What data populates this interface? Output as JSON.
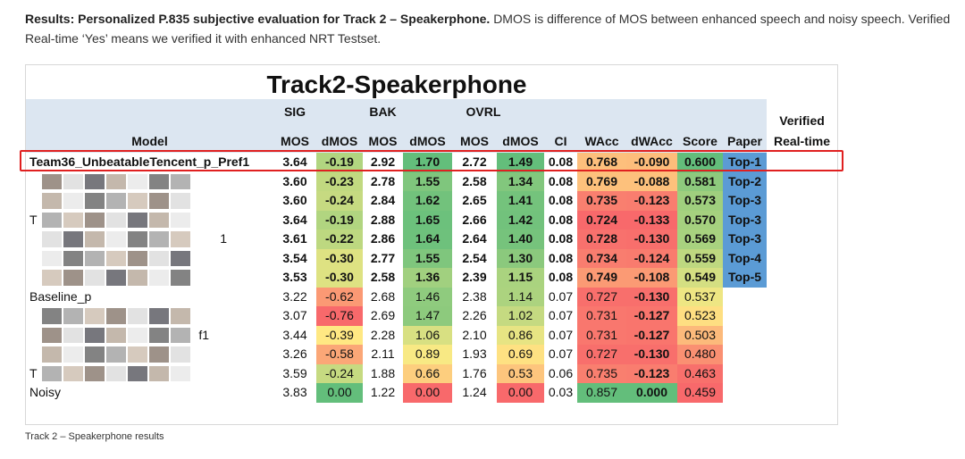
{
  "caption": {
    "bold": "Results: Personalized P.835 subjective evaluation for Track 2 – Speakerphone.",
    "rest": "DMOS is difference of MOS between enhanced speech and noisy speech. Verified Real-time ‘Yes’ means we verified it with enhanced NRT Testset."
  },
  "table": {
    "title": "Track2-Speakerphone",
    "group_headers": [
      "SIG",
      "BAK",
      "OVRL",
      "Verified",
      "Real-time"
    ],
    "columns": [
      "Model",
      "MOS",
      "dMOS",
      "MOS",
      "dMOS",
      "MOS",
      "dMOS",
      "CI",
      "WAcc",
      "dWAcc",
      "Score",
      "Paper"
    ],
    "rows": [
      [
        "Team36_UnbeatableTencent_p_Pref1",
        "3.64",
        "-0.19",
        "2.92",
        "1.70",
        "2.72",
        "1.49",
        "0.08",
        "0.768",
        "-0.090",
        "0.600",
        "Top-1"
      ],
      [
        null,
        "3.60",
        "-0.23",
        "2.78",
        "1.55",
        "2.58",
        "1.34",
        "0.08",
        "0.769",
        "-0.088",
        "0.581",
        "Top-2"
      ],
      [
        null,
        "3.60",
        "-0.24",
        "2.84",
        "1.62",
        "2.65",
        "1.41",
        "0.08",
        "0.735",
        "-0.123",
        "0.573",
        "Top-3"
      ],
      [
        "T",
        "3.64",
        "-0.19",
        "2.88",
        "1.65",
        "2.66",
        "1.42",
        "0.08",
        "0.724",
        "-0.133",
        "0.570",
        "Top-3"
      ],
      [
        "1",
        "3.61",
        "-0.22",
        "2.86",
        "1.64",
        "2.64",
        "1.40",
        "0.08",
        "0.728",
        "-0.130",
        "0.569",
        "Top-3"
      ],
      [
        null,
        "3.54",
        "-0.30",
        "2.77",
        "1.55",
        "2.54",
        "1.30",
        "0.08",
        "0.734",
        "-0.124",
        "0.559",
        "Top-4"
      ],
      [
        null,
        "3.53",
        "-0.30",
        "2.58",
        "1.36",
        "2.39",
        "1.15",
        "0.08",
        "0.749",
        "-0.108",
        "0.549",
        "Top-5"
      ],
      [
        "Baseline_p",
        "3.22",
        "-0.62",
        "2.68",
        "1.46",
        "2.38",
        "1.14",
        "0.07",
        "0.727",
        "-0.130",
        "0.537",
        null
      ],
      [
        null,
        "3.07",
        "-0.76",
        "2.69",
        "1.47",
        "2.26",
        "1.02",
        "0.07",
        "0.731",
        "-0.127",
        "0.523",
        null
      ],
      [
        "f1",
        "3.44",
        "-0.39",
        "2.28",
        "1.06",
        "2.10",
        "0.86",
        "0.07",
        "0.731",
        "-0.127",
        "0.503",
        null
      ],
      [
        null,
        "3.26",
        "-0.58",
        "2.11",
        "0.89",
        "1.93",
        "0.69",
        "0.07",
        "0.727",
        "-0.130",
        "0.480",
        null
      ],
      [
        "T",
        "3.59",
        "-0.24",
        "1.88",
        "0.66",
        "1.76",
        "0.53",
        "0.06",
        "0.735",
        "-0.123",
        "0.463",
        null
      ],
      [
        "Noisy",
        "3.83",
        "0.00",
        "1.22",
        "0.00",
        "1.24",
        "0.00",
        "0.03",
        "0.857",
        "0.000",
        "0.459",
        null
      ]
    ]
  },
  "footer": "Track 2 – Speakerphone results"
}
